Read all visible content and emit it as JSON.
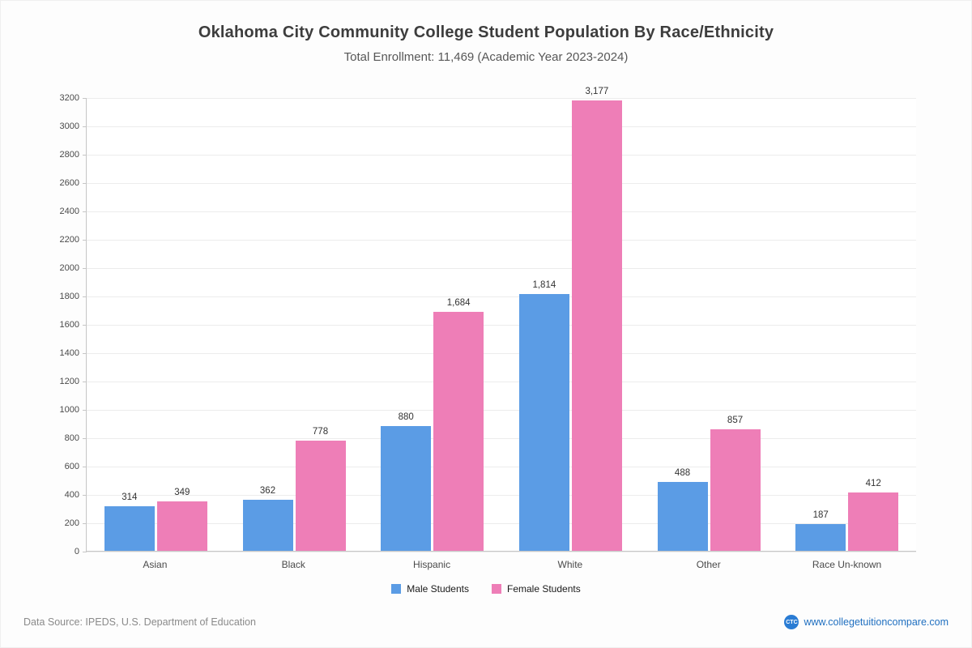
{
  "title": "Oklahoma City Community College Student Population By Race/Ethnicity",
  "subtitle": "Total Enrollment: 11,469 (Academic Year 2023-2024)",
  "chart_data": {
    "type": "bar",
    "categories": [
      "Asian",
      "Black",
      "Hispanic",
      "White",
      "Other",
      "Race Un-known"
    ],
    "series": [
      {
        "name": "Male Students",
        "color": "#5b9ce5",
        "values": [
          314,
          362,
          880,
          1814,
          488,
          187
        ]
      },
      {
        "name": "Female Students",
        "color": "#ee7eb7",
        "values": [
          349,
          778,
          1684,
          3177,
          857,
          412
        ]
      }
    ],
    "title": "Oklahoma City Community College Student Population By Race/Ethnicity",
    "xlabel": "",
    "ylabel": "",
    "ylim": [
      0,
      3200
    ],
    "ytick_step": 200,
    "grid": true,
    "legend_position": "bottom"
  },
  "footer": {
    "source": "Data Source: IPEDS, U.S. Department of Education",
    "logo_text": "CTC",
    "website": "www.collegetuitioncompare.com"
  }
}
